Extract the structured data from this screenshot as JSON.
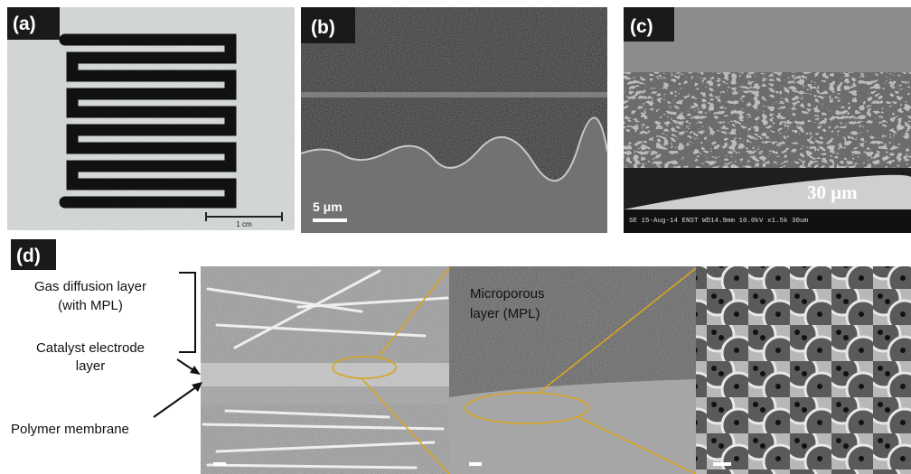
{
  "panels": {
    "a": {
      "label": "(a)",
      "scale_bar": "1 cm"
    },
    "b": {
      "label": "(b)",
      "scale_bar": "5 μm"
    },
    "c": {
      "label": "(c)",
      "scale_bar": "30 μm",
      "sem_info": "SE   15-Aug-14   ENST   WD14.9mm 10.0kV x1.5k   30um"
    },
    "d": {
      "label": "(d)",
      "annotations": [
        {
          "lines": [
            "Gas diffusion layer",
            "(with MPL)"
          ]
        },
        {
          "lines": [
            "Catalyst electrode",
            "layer"
          ]
        },
        {
          "lines": [
            "Polymer membrane"
          ]
        },
        {
          "lines": [
            "Microporous",
            "layer (MPL)"
          ]
        }
      ]
    }
  }
}
